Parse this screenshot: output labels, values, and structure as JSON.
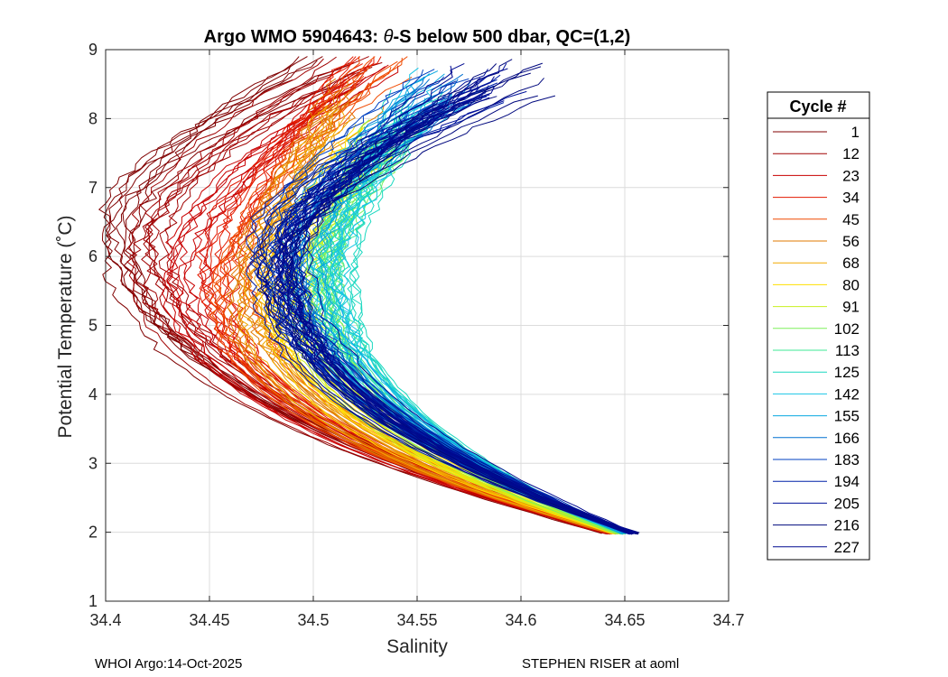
{
  "chart_data": {
    "type": "line",
    "title_prefix": "Argo WMO 5904643: ",
    "title_theta": "θ",
    "title_suffix": "-S below 500 dbar,  QC=(1,2)",
    "xlabel": "Salinity",
    "ylabel": "Potential Temperature (˚C)",
    "xlim": [
      34.4,
      34.7
    ],
    "ylim": [
      1,
      9
    ],
    "xticks": [
      34.4,
      34.45,
      34.5,
      34.55,
      34.6,
      34.65,
      34.7
    ],
    "xtick_labels": [
      "34.4",
      "34.45",
      "34.5",
      "34.55",
      "34.6",
      "34.65",
      "34.7"
    ],
    "yticks": [
      1,
      2,
      3,
      4,
      5,
      6,
      7,
      8,
      9
    ],
    "ytick_labels": [
      "1",
      "2",
      "3",
      "4",
      "5",
      "6",
      "7",
      "8",
      "9"
    ],
    "grid": true,
    "legend_position": "right-outside",
    "legend": {
      "title": "Cycle #",
      "entries": [
        {
          "label": "1",
          "color": "#800000"
        },
        {
          "label": "12",
          "color": "#a00000"
        },
        {
          "label": "23",
          "color": "#c80000"
        },
        {
          "label": "34",
          "color": "#e31a00"
        },
        {
          "label": "45",
          "color": "#f04a00"
        },
        {
          "label": "56",
          "color": "#e07a00"
        },
        {
          "label": "68",
          "color": "#f2a900"
        },
        {
          "label": "80",
          "color": "#ffe000"
        },
        {
          "label": "91",
          "color": "#c8f020"
        },
        {
          "label": "102",
          "color": "#7ef05a"
        },
        {
          "label": "113",
          "color": "#3ee895"
        },
        {
          "label": "125",
          "color": "#1ad8c0"
        },
        {
          "label": "142",
          "color": "#19c6e6"
        },
        {
          "label": "155",
          "color": "#0aa8e0"
        },
        {
          "label": "166",
          "color": "#0070d0"
        },
        {
          "label": "183",
          "color": "#0040c0"
        },
        {
          "label": "194",
          "color": "#0020a8"
        },
        {
          "label": "205",
          "color": "#00109a"
        },
        {
          "label": "216",
          "color": "#00087e"
        },
        {
          "label": "227",
          "color": "#000a90"
        }
      ]
    },
    "series": [
      {
        "name": "1",
        "color": "#800000",
        "profile": {
          "s_bottom": 34.641,
          "s_knee": 34.405,
          "t_knee": 6.5,
          "s_top": 34.505,
          "t_top": 8.7
        }
      },
      {
        "name": "12",
        "color": "#a00000",
        "profile": {
          "s_bottom": 34.642,
          "s_knee": 34.42,
          "t_knee": 6.2,
          "s_top": 34.52,
          "t_top": 8.8
        }
      },
      {
        "name": "23",
        "color": "#c80000",
        "profile": {
          "s_bottom": 34.643,
          "s_knee": 34.44,
          "t_knee": 5.9,
          "s_top": 34.53,
          "t_top": 8.6
        }
      },
      {
        "name": "34",
        "color": "#e31a00",
        "profile": {
          "s_bottom": 34.644,
          "s_knee": 34.455,
          "t_knee": 5.7,
          "s_top": 34.53,
          "t_top": 8.9
        }
      },
      {
        "name": "45",
        "color": "#f04a00",
        "profile": {
          "s_bottom": 34.645,
          "s_knee": 34.46,
          "t_knee": 5.6,
          "s_top": 34.535,
          "t_top": 8.7
        }
      },
      {
        "name": "56",
        "color": "#e07a00",
        "profile": {
          "s_bottom": 34.645,
          "s_knee": 34.47,
          "t_knee": 5.5,
          "s_top": 34.52,
          "t_top": 8.3
        }
      },
      {
        "name": "68",
        "color": "#f2a900",
        "profile": {
          "s_bottom": 34.646,
          "s_knee": 34.475,
          "t_knee": 5.4,
          "s_top": 34.515,
          "t_top": 8.0
        }
      },
      {
        "name": "80",
        "color": "#ffe000",
        "profile": {
          "s_bottom": 34.646,
          "s_knee": 34.485,
          "t_knee": 5.3,
          "s_top": 34.525,
          "t_top": 7.7
        }
      },
      {
        "name": "91",
        "color": "#c8f020",
        "profile": {
          "s_bottom": 34.647,
          "s_knee": 34.495,
          "t_knee": 5.4,
          "s_top": 34.53,
          "t_top": 7.6
        }
      },
      {
        "name": "102",
        "color": "#7ef05a",
        "profile": {
          "s_bottom": 34.648,
          "s_knee": 34.505,
          "t_knee": 5.6,
          "s_top": 34.54,
          "t_top": 7.7
        }
      },
      {
        "name": "113",
        "color": "#3ee895",
        "profile": {
          "s_bottom": 34.648,
          "s_knee": 34.51,
          "t_knee": 5.7,
          "s_top": 34.545,
          "t_top": 7.9
        }
      },
      {
        "name": "125",
        "color": "#1ad8c0",
        "profile": {
          "s_bottom": 34.649,
          "s_knee": 34.51,
          "t_knee": 5.8,
          "s_top": 34.55,
          "t_top": 8.2
        }
      },
      {
        "name": "142",
        "color": "#19c6e6",
        "profile": {
          "s_bottom": 34.65,
          "s_knee": 34.505,
          "t_knee": 5.9,
          "s_top": 34.56,
          "t_top": 8.5
        }
      },
      {
        "name": "155",
        "color": "#0aa8e0",
        "profile": {
          "s_bottom": 34.651,
          "s_knee": 34.495,
          "t_knee": 6.0,
          "s_top": 34.56,
          "t_top": 8.4
        }
      },
      {
        "name": "166",
        "color": "#0070d0",
        "profile": {
          "s_bottom": 34.652,
          "s_knee": 34.49,
          "t_knee": 6.0,
          "s_top": 34.565,
          "t_top": 8.5
        }
      },
      {
        "name": "183",
        "color": "#0040c0",
        "profile": {
          "s_bottom": 34.653,
          "s_knee": 34.485,
          "t_knee": 6.1,
          "s_top": 34.57,
          "t_top": 8.45
        }
      },
      {
        "name": "194",
        "color": "#0020a8",
        "profile": {
          "s_bottom": 34.653,
          "s_knee": 34.48,
          "t_knee": 6.1,
          "s_top": 34.58,
          "t_top": 8.5
        }
      },
      {
        "name": "205",
        "color": "#00109a",
        "profile": {
          "s_bottom": 34.654,
          "s_knee": 34.482,
          "t_knee": 6.0,
          "s_top": 34.59,
          "t_top": 8.55
        }
      },
      {
        "name": "216",
        "color": "#00087e",
        "profile": {
          "s_bottom": 34.655,
          "s_knee": 34.485,
          "t_knee": 6.0,
          "s_top": 34.6,
          "t_top": 8.6
        }
      },
      {
        "name": "227",
        "color": "#000a90",
        "profile": {
          "s_bottom": 34.655,
          "s_knee": 34.49,
          "t_knee": 6.0,
          "s_top": 34.58,
          "t_top": 8.5
        }
      }
    ]
  },
  "footer": {
    "left": "WHOI Argo:14-Oct-2025",
    "right": "STEPHEN RISER at aoml"
  }
}
